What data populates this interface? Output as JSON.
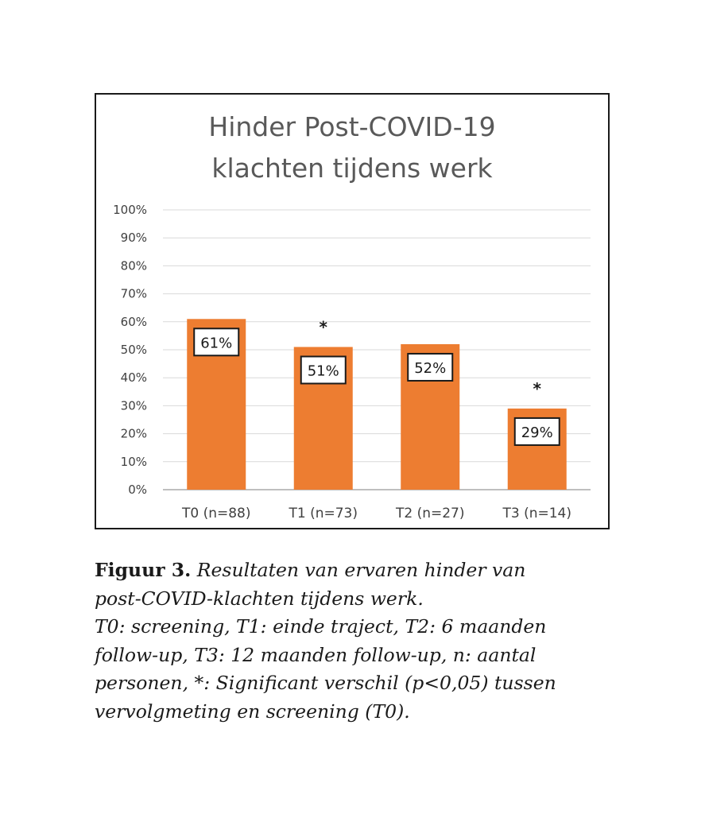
{
  "chart_data": {
    "type": "bar",
    "title_lines": [
      "Hinder Post-COVID-19",
      "klachten tijdens werk"
    ],
    "categories": [
      "T0 (n=88)",
      "T1 (n=73)",
      "T2 (n=27)",
      "T3 (n=14)"
    ],
    "values": [
      61,
      51,
      52,
      29
    ],
    "data_labels": [
      "61%",
      "51%",
      "52%",
      "29%"
    ],
    "significant": [
      false,
      true,
      false,
      true
    ],
    "significance_marker": "*",
    "ylim": [
      0,
      100
    ],
    "y_ticks": [
      0,
      10,
      20,
      30,
      40,
      50,
      60,
      70,
      80,
      90,
      100
    ],
    "y_tick_labels": [
      "0%",
      "10%",
      "20%",
      "30%",
      "40%",
      "50%",
      "60%",
      "70%",
      "80%",
      "90%",
      "100%"
    ],
    "grid": true,
    "legend": "none",
    "colors": {
      "bar": "#ED7D31",
      "grid": "#D9D9D9",
      "axis": "#BFBFBF",
      "frame": "#1A1A1A"
    }
  },
  "caption": {
    "label": "Figuur 3.",
    "first_line": "Resultaten van ervaren hinder van",
    "lines": [
      "post-COVID-klachten tijdens werk.",
      "T0: screening, T1: einde traject, T2: 6 maanden",
      "follow-up, T3: 12 maanden follow-up, n: aantal",
      "personen, *: Significant verschil (p<0,05) tussen",
      "vervolgmeting en screening (T0)."
    ]
  }
}
